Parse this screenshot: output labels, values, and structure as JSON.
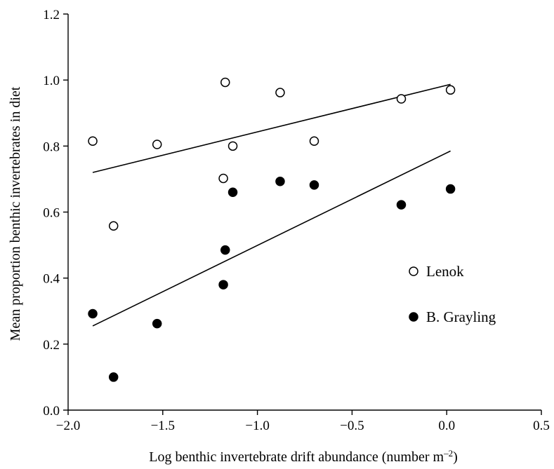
{
  "chart_data": {
    "type": "scatter",
    "title": "",
    "xlabel": "Log benthic invertebrate drift abundance (number m",
    "xlabel_sup": "–2",
    "xlabel_close": ")",
    "ylabel": "Mean proportion benthic invertebrates in diet",
    "xlim": [
      -2.0,
      0.5
    ],
    "ylim": [
      0.0,
      1.2
    ],
    "xticks": [
      -2.0,
      -1.5,
      -1.0,
      -0.5,
      0.0,
      0.5
    ],
    "xtick_labels": [
      "−2.0",
      "−1.5",
      "−1.0",
      "−0.5",
      "0.0",
      "0.5"
    ],
    "yticks": [
      0.0,
      0.2,
      0.4,
      0.6,
      0.8,
      1.0,
      1.2
    ],
    "ytick_labels": [
      "0.0",
      "0.2",
      "0.4",
      "0.6",
      "0.8",
      "1.0",
      "1.2"
    ],
    "grid": false,
    "legend_position": "right",
    "series": [
      {
        "name": "Lenok",
        "marker": "open-circle",
        "color": "#000000",
        "points": [
          {
            "x": -1.87,
            "y": 0.815
          },
          {
            "x": -1.76,
            "y": 0.558
          },
          {
            "x": -1.53,
            "y": 0.805
          },
          {
            "x": -1.18,
            "y": 0.702
          },
          {
            "x": -1.17,
            "y": 0.993
          },
          {
            "x": -1.13,
            "y": 0.8
          },
          {
            "x": -0.88,
            "y": 0.962
          },
          {
            "x": -0.7,
            "y": 0.815
          },
          {
            "x": -0.24,
            "y": 0.943
          },
          {
            "x": 0.02,
            "y": 0.97
          }
        ],
        "trendline": {
          "x": [
            -1.87,
            0.02
          ],
          "y": [
            0.72,
            0.987
          ]
        }
      },
      {
        "name": "B. Grayling",
        "marker": "filled-circle",
        "color": "#000000",
        "points": [
          {
            "x": -1.87,
            "y": 0.292
          },
          {
            "x": -1.76,
            "y": 0.1
          },
          {
            "x": -1.53,
            "y": 0.262
          },
          {
            "x": -1.18,
            "y": 0.38
          },
          {
            "x": -1.17,
            "y": 0.485
          },
          {
            "x": -1.13,
            "y": 0.66
          },
          {
            "x": -0.88,
            "y": 0.693
          },
          {
            "x": -0.7,
            "y": 0.682
          },
          {
            "x": -0.24,
            "y": 0.622
          },
          {
            "x": 0.02,
            "y": 0.67
          }
        ],
        "trendline": {
          "x": [
            -1.87,
            0.02
          ],
          "y": [
            0.255,
            0.785
          ]
        }
      }
    ]
  }
}
